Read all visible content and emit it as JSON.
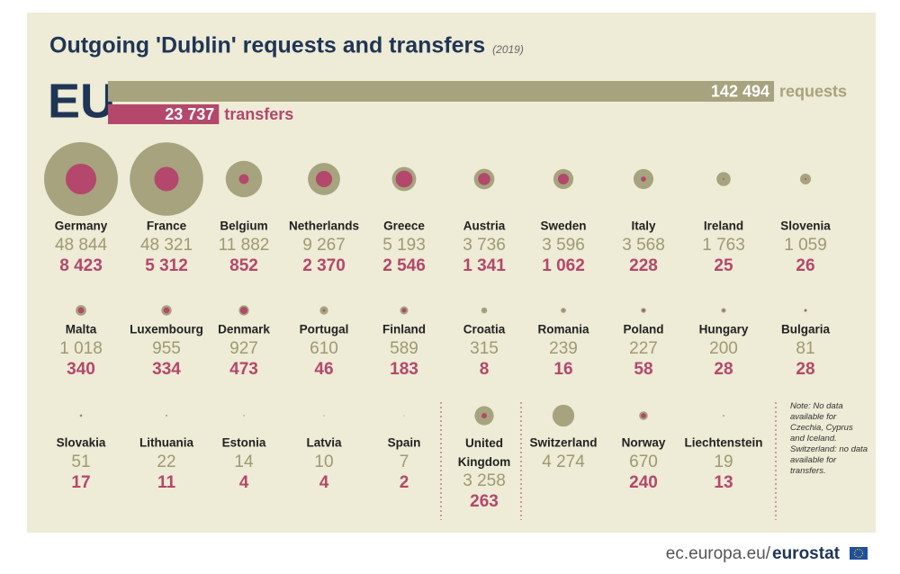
{
  "chart_data": {
    "type": "bubble",
    "title": "Outgoing 'Dublin' requests and transfers",
    "subtitle": "(2019)",
    "total_label": "EU",
    "categories": [
      "Germany",
      "France",
      "Belgium",
      "Netherlands",
      "Greece",
      "Austria",
      "Sweden",
      "Italy",
      "Ireland",
      "Slovenia",
      "Malta",
      "Luxembourg",
      "Denmark",
      "Portugal",
      "Finland",
      "Croatia",
      "Romania",
      "Poland",
      "Hungary",
      "Bulgaria",
      "Slovakia",
      "Lithuania",
      "Estonia",
      "Latvia",
      "Spain",
      "United Kingdom",
      "Switzerland",
      "Norway",
      "Liechtenstein"
    ],
    "series": [
      {
        "name": "requests",
        "color": "#a6a37e",
        "total": 142494,
        "total_label": "142 494",
        "values": [
          48844,
          48321,
          11882,
          9267,
          5193,
          3736,
          3596,
          3568,
          1763,
          1059,
          1018,
          955,
          927,
          610,
          589,
          315,
          239,
          227,
          200,
          81,
          51,
          22,
          14,
          10,
          7,
          3258,
          4274,
          670,
          19
        ],
        "value_labels": [
          "48 844",
          "48 321",
          "11 882",
          "9 267",
          "5 193",
          "3 736",
          "3 596",
          "3 568",
          "1 763",
          "1 059",
          "1 018",
          "955",
          "927",
          "610",
          "589",
          "315",
          "239",
          "227",
          "200",
          "81",
          "51",
          "22",
          "14",
          "10",
          "7",
          "3 258",
          "4 274",
          "670",
          "19"
        ]
      },
      {
        "name": "transfers",
        "color": "#b4476c",
        "total": 23737,
        "total_label": "23 737",
        "values": [
          8423,
          5312,
          852,
          2370,
          2546,
          1341,
          1062,
          228,
          25,
          26,
          340,
          334,
          473,
          46,
          183,
          8,
          16,
          58,
          28,
          28,
          17,
          11,
          4,
          4,
          2,
          263,
          null,
          240,
          13
        ],
        "value_labels": [
          "8 423",
          "5 312",
          "852",
          "2 370",
          "2 546",
          "1 341",
          "1 062",
          "228",
          "25",
          "26",
          "340",
          "334",
          "473",
          "46",
          "183",
          "8",
          "16",
          "58",
          "28",
          "28",
          "17",
          "11",
          "4",
          "4",
          "2",
          "263",
          null,
          "240",
          "13"
        ]
      }
    ],
    "note": "Note: No data available for Czechia, Cyprus and Iceland. Switzerland: no data available for transfers.",
    "source": "ec.europa.eu/",
    "source_brand": "eurostat"
  }
}
